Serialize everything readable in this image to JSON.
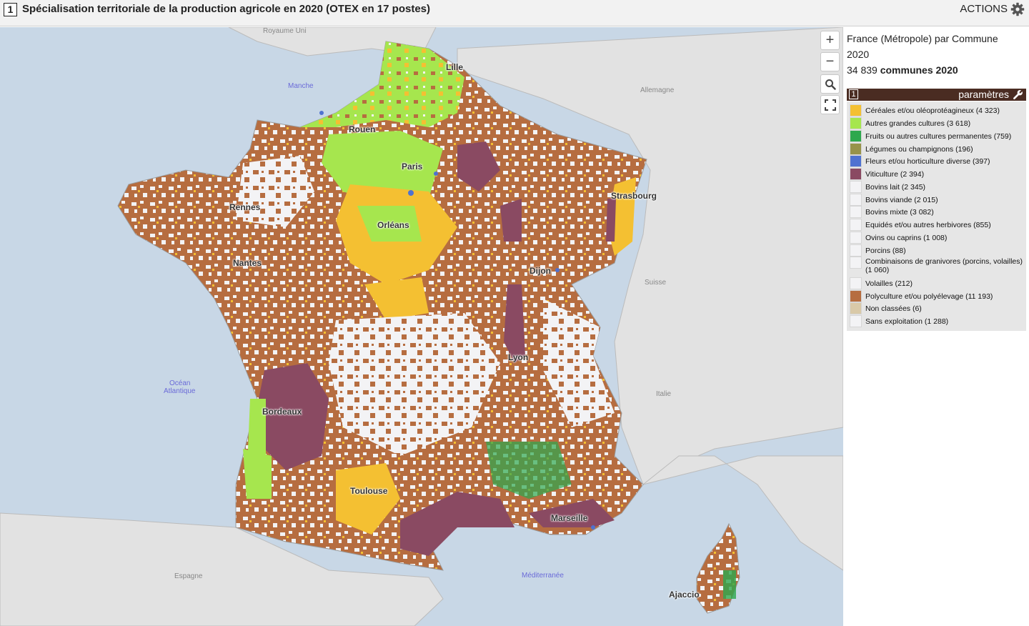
{
  "header": {
    "badge": "1",
    "title": "Spécialisation territoriale de la production agricole en 2020 (OTEX en 17 postes)",
    "actions_label": "ACTIONS",
    "actions_icon": "gear-icon"
  },
  "map": {
    "controls": {
      "zoom_in": "+",
      "zoom_out": "−",
      "search_icon": "search-icon",
      "fullscreen_icon": "fullscreen-icon"
    },
    "countries": {
      "uk": "Royaume Uni",
      "germany": "Allemagne",
      "switzerland": "Suisse",
      "italy": "Italie",
      "spain": "Espagne"
    },
    "seas": {
      "channel": "Manche",
      "atlantic_1": "Océan",
      "atlantic_2": "Atlantique",
      "mediterranean": "Méditerranée"
    },
    "cities": {
      "lille": "Lille",
      "rouen": "Rouen",
      "paris": "Paris",
      "strasbourg": "Strasbourg",
      "rennes": "Rennes",
      "orleans": "Orléans",
      "nantes": "Nantes",
      "dijon": "Dijon",
      "lyon": "Lyon",
      "bordeaux": "Bordeaux",
      "toulouse": "Toulouse",
      "marseille": "Marseille",
      "ajaccio": "Ajaccio"
    }
  },
  "panel": {
    "line1": "France (Métropole) par Commune",
    "line2": "2020",
    "count": "34 839",
    "count_label": "communes 2020",
    "legend_badge": "1",
    "legend_params": "paramètres",
    "legend_icon": "wrench-icon",
    "legend": [
      {
        "label": "Céréales et/ou oléoprotéagineux (4 323)",
        "color": "#f4c032"
      },
      {
        "label": "Autres grandes cultures (3 618)",
        "color": "#a6e64e"
      },
      {
        "label": "Fruits ou autres cultures permanentes (759)",
        "color": "#2ea84e"
      },
      {
        "label": "Légumes ou champignons (196)",
        "color": "#97934a"
      },
      {
        "label": "Fleurs et/ou horticulture diverse (397)",
        "color": "#4f72d0"
      },
      {
        "label": "Viticulture (2 394)",
        "color": "#8a4a62"
      },
      {
        "label": "Bovins lait (2 345)",
        "color": "#f3f3f5"
      },
      {
        "label": "Bovins viande (2 015)",
        "color": "#f3f3f5"
      },
      {
        "label": "Bovins mixte (3 082)",
        "color": "#f3f3f5"
      },
      {
        "label": "Equidés et/ou autres herbivores (855)",
        "color": "#f3f3f5"
      },
      {
        "label": "Ovins ou caprins (1 008)",
        "color": "#f3f3f5"
      },
      {
        "label": "Porcins (88)",
        "color": "#f3f3f5"
      },
      {
        "label": "Combinaisons de granivores (porcins, volailles) (1 060)",
        "color": "#f3f3f5"
      },
      {
        "label": "Volailles (212)",
        "color": "#f3f3f5"
      },
      {
        "label": "Polyculture et/ou polyélevage (11 193)",
        "color": "#b66d40"
      },
      {
        "label": "Non classées (6)",
        "color": "#d9c9a8"
      },
      {
        "label": "Sans exploitation (1 288)",
        "color": "#f3f3f5"
      }
    ]
  }
}
